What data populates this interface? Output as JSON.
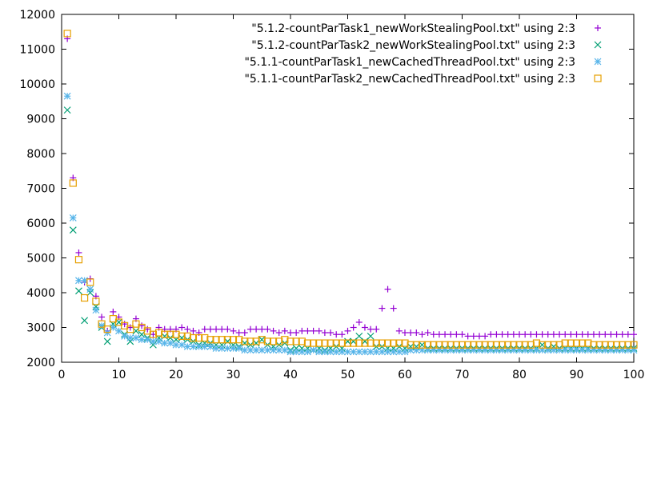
{
  "chart_data": {
    "type": "scatter",
    "title": "",
    "xlabel": "",
    "ylabel": "",
    "xlim": [
      0,
      100
    ],
    "ylim": [
      2000,
      12000
    ],
    "xticks": [
      0,
      10,
      20,
      30,
      40,
      50,
      60,
      70,
      80,
      90,
      100
    ],
    "yticks": [
      2000,
      3000,
      4000,
      5000,
      6000,
      7000,
      8000,
      9000,
      10000,
      11000,
      12000
    ],
    "grid": false,
    "legend_position": "top-right",
    "series": [
      {
        "name": "\"5.1.2-countParTask1_newWorkStealingPool.txt\" using 2:3",
        "marker": "plus",
        "color": "#9400d3",
        "x": [
          1,
          2,
          3,
          4,
          5,
          6,
          7,
          8,
          9,
          10,
          11,
          12,
          13,
          14,
          15,
          16,
          17,
          18,
          19,
          20,
          21,
          22,
          23,
          24,
          25,
          26,
          27,
          28,
          29,
          30,
          31,
          32,
          33,
          34,
          35,
          36,
          37,
          38,
          39,
          40,
          41,
          42,
          43,
          44,
          45,
          46,
          47,
          48,
          49,
          50,
          51,
          52,
          53,
          54,
          55,
          56,
          57,
          58,
          59,
          60,
          61,
          62,
          63,
          64,
          65,
          66,
          67,
          68,
          69,
          70,
          71,
          72,
          73,
          74,
          75,
          76,
          77,
          78,
          79,
          80,
          81,
          82,
          83,
          84,
          85,
          86,
          87,
          88,
          89,
          90,
          91,
          92,
          93,
          94,
          95,
          96,
          97,
          98,
          99,
          100
        ],
        "y": [
          11300,
          7300,
          5150,
          4300,
          4400,
          3900,
          3300,
          2900,
          3450,
          3300,
          3100,
          3000,
          3250,
          3050,
          2950,
          2800,
          3000,
          2950,
          2950,
          2950,
          3000,
          2950,
          2900,
          2850,
          2950,
          2950,
          2950,
          2950,
          2950,
          2900,
          2850,
          2850,
          2950,
          2950,
          2950,
          2950,
          2900,
          2850,
          2900,
          2850,
          2850,
          2900,
          2900,
          2900,
          2900,
          2850,
          2850,
          2800,
          2800,
          2900,
          3000,
          3150,
          3000,
          2950,
          2950,
          3550,
          4100,
          3550,
          2900,
          2850,
          2850,
          2850,
          2800,
          2850,
          2800,
          2800,
          2800,
          2800,
          2800,
          2800,
          2750,
          2750,
          2750,
          2750,
          2800,
          2800,
          2800,
          2800,
          2800,
          2800,
          2800,
          2800,
          2800,
          2800,
          2800,
          2800,
          2800,
          2800,
          2800,
          2800,
          2800,
          2800,
          2800,
          2800,
          2800,
          2800,
          2800,
          2800,
          2800,
          2800
        ]
      },
      {
        "name": "\"5.1.2-countParTask2_newWorkStealingPool.txt\" using 2:3",
        "marker": "cross",
        "color": "#009e73",
        "x": [
          1,
          2,
          3,
          4,
          5,
          6,
          7,
          8,
          9,
          10,
          11,
          12,
          13,
          14,
          15,
          16,
          17,
          18,
          19,
          20,
          21,
          22,
          23,
          24,
          25,
          26,
          27,
          28,
          29,
          30,
          31,
          32,
          33,
          34,
          35,
          36,
          37,
          38,
          39,
          40,
          41,
          42,
          43,
          44,
          45,
          46,
          47,
          48,
          49,
          50,
          51,
          52,
          53,
          54,
          55,
          56,
          57,
          58,
          59,
          60,
          61,
          62,
          63,
          64,
          65,
          66,
          67,
          68,
          69,
          70,
          71,
          72,
          73,
          74,
          75,
          76,
          77,
          78,
          79,
          80,
          81,
          82,
          83,
          84,
          85,
          86,
          87,
          88,
          89,
          90,
          91,
          92,
          93,
          94,
          95,
          96,
          97,
          98,
          99,
          100
        ],
        "y": [
          9250,
          5800,
          4050,
          3200,
          4000,
          3600,
          3000,
          2600,
          3100,
          3150,
          2800,
          2600,
          2900,
          2800,
          2700,
          2500,
          2700,
          2750,
          2700,
          2650,
          2700,
          2650,
          2600,
          2500,
          2550,
          2550,
          2500,
          2500,
          2600,
          2500,
          2450,
          2550,
          2500,
          2550,
          2650,
          2500,
          2450,
          2500,
          2550,
          2350,
          2400,
          2400,
          2400,
          2350,
          2400,
          2350,
          2400,
          2450,
          2400,
          2600,
          2600,
          2750,
          2600,
          2750,
          2450,
          2450,
          2400,
          2400,
          2450,
          2400,
          2450,
          2450,
          2500,
          2400,
          2400,
          2400,
          2400,
          2400,
          2400,
          2400,
          2400,
          2400,
          2400,
          2400,
          2400,
          2400,
          2400,
          2400,
          2400,
          2400,
          2400,
          2400,
          2400,
          2500,
          2400,
          2450,
          2400,
          2400,
          2400,
          2400,
          2400,
          2400,
          2400,
          2400,
          2400,
          2400,
          2400,
          2400,
          2400,
          2400
        ]
      },
      {
        "name": "\"5.1.1-countParTask1_newCachedThreadPool.txt\" using 2:3",
        "marker": "star",
        "color": "#56b4e9",
        "x": [
          1,
          2,
          3,
          4,
          5,
          6,
          7,
          8,
          9,
          10,
          11,
          12,
          13,
          14,
          15,
          16,
          17,
          18,
          19,
          20,
          21,
          22,
          23,
          24,
          25,
          26,
          27,
          28,
          29,
          30,
          31,
          32,
          33,
          34,
          35,
          36,
          37,
          38,
          39,
          40,
          41,
          42,
          43,
          44,
          45,
          46,
          47,
          48,
          49,
          50,
          51,
          52,
          53,
          54,
          55,
          56,
          57,
          58,
          59,
          60,
          61,
          62,
          63,
          64,
          65,
          66,
          67,
          68,
          69,
          70,
          71,
          72,
          73,
          74,
          75,
          76,
          77,
          78,
          79,
          80,
          81,
          82,
          83,
          84,
          85,
          86,
          87,
          88,
          89,
          90,
          91,
          92,
          93,
          94,
          95,
          96,
          97,
          98,
          99,
          100
        ],
        "y": [
          9650,
          6150,
          4350,
          4350,
          4100,
          3500,
          3050,
          2850,
          3000,
          2900,
          2750,
          2700,
          2700,
          2650,
          2650,
          2600,
          2600,
          2550,
          2550,
          2500,
          2500,
          2450,
          2450,
          2450,
          2450,
          2450,
          2400,
          2400,
          2400,
          2400,
          2400,
          2350,
          2350,
          2350,
          2350,
          2350,
          2350,
          2350,
          2350,
          2300,
          2300,
          2300,
          2300,
          2350,
          2300,
          2300,
          2300,
          2300,
          2300,
          2300,
          2300,
          2300,
          2300,
          2300,
          2300,
          2300,
          2300,
          2300,
          2300,
          2300,
          2350,
          2350,
          2350,
          2350,
          2350,
          2350,
          2350,
          2350,
          2350,
          2350,
          2350,
          2350,
          2350,
          2350,
          2350,
          2350,
          2350,
          2350,
          2350,
          2350,
          2350,
          2350,
          2350,
          2350,
          2350,
          2350,
          2350,
          2350,
          2350,
          2350,
          2350,
          2350,
          2350,
          2350,
          2350,
          2350,
          2350,
          2350,
          2350,
          2350
        ]
      },
      {
        "name": "\"5.1.1-countParTask2_newCachedThreadPool.txt\" using 2:3",
        "marker": "square",
        "color": "#e69f00",
        "x": [
          1,
          2,
          3,
          4,
          5,
          6,
          7,
          8,
          9,
          10,
          11,
          12,
          13,
          14,
          15,
          16,
          17,
          18,
          19,
          20,
          21,
          22,
          23,
          24,
          25,
          26,
          27,
          28,
          29,
          30,
          31,
          32,
          33,
          34,
          35,
          36,
          37,
          38,
          39,
          40,
          41,
          42,
          43,
          44,
          45,
          46,
          47,
          48,
          49,
          50,
          51,
          52,
          53,
          54,
          55,
          56,
          57,
          58,
          59,
          60,
          61,
          62,
          63,
          64,
          65,
          66,
          67,
          68,
          69,
          70,
          71,
          72,
          73,
          74,
          75,
          76,
          77,
          78,
          79,
          80,
          81,
          82,
          83,
          84,
          85,
          86,
          87,
          88,
          89,
          90,
          91,
          92,
          93,
          94,
          95,
          96,
          97,
          98,
          99,
          100
        ],
        "y": [
          11450,
          7150,
          4950,
          3850,
          4300,
          3750,
          3100,
          2950,
          3250,
          3150,
          3050,
          2950,
          3100,
          3000,
          2900,
          2800,
          2850,
          2800,
          2800,
          2800,
          2750,
          2750,
          2700,
          2700,
          2700,
          2650,
          2650,
          2650,
          2650,
          2650,
          2650,
          2600,
          2600,
          2600,
          2650,
          2600,
          2600,
          2600,
          2650,
          2600,
          2600,
          2600,
          2550,
          2550,
          2550,
          2550,
          2550,
          2550,
          2550,
          2550,
          2550,
          2550,
          2550,
          2550,
          2550,
          2550,
          2550,
          2550,
          2550,
          2550,
          2500,
          2500,
          2500,
          2500,
          2500,
          2500,
          2500,
          2500,
          2500,
          2500,
          2500,
          2500,
          2500,
          2500,
          2500,
          2500,
          2500,
          2500,
          2500,
          2500,
          2500,
          2500,
          2550,
          2500,
          2500,
          2500,
          2500,
          2550,
          2550,
          2550,
          2550,
          2550,
          2500,
          2500,
          2500,
          2500,
          2500,
          2500,
          2500,
          2500
        ]
      }
    ]
  }
}
